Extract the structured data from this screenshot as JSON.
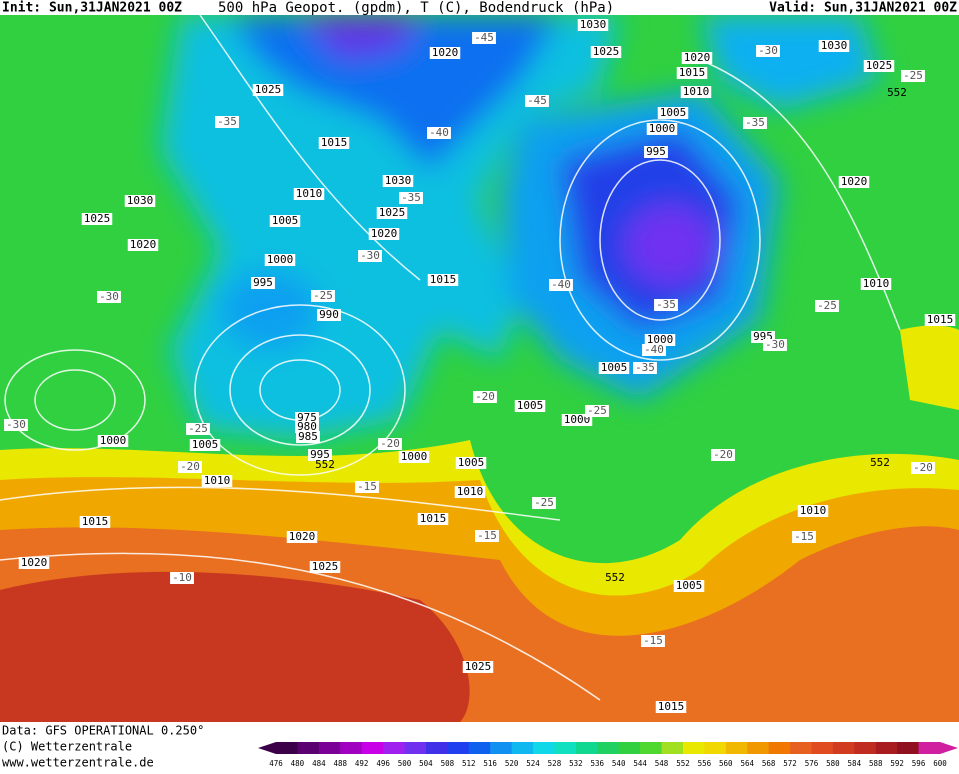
{
  "header": {
    "init": "Init: Sun,31JAN2021 00Z",
    "title": "500 hPa Geopot. (gpdm), T (C), Bodendruck (hPa)",
    "valid": "Valid: Sun,31JAN2021 00Z"
  },
  "footer": {
    "source": "Data: GFS OPERATIONAL 0.250°",
    "copyright": "(C) Wetterzentrale",
    "url": "www.wetterzentrale.de"
  },
  "pressure_labels": [
    1030,
    1020,
    1025,
    1020,
    1015,
    1010,
    1005,
    1000,
    995,
    1030,
    1025,
    1020,
    1010,
    1015,
    995,
    1000,
    1005,
    1025,
    1015,
    1010,
    1005,
    1000,
    995,
    990,
    1030,
    1025,
    1020,
    1030,
    1025,
    1020,
    1015,
    975,
    980,
    985,
    995,
    1000,
    1005,
    1010,
    1000,
    1005,
    1010,
    1015,
    1015,
    1020,
    1025,
    1020,
    1005,
    1000,
    1010,
    1005,
    1025,
    1015
  ],
  "temperature_labels": [
    -45,
    -45,
    -40,
    -35,
    -35,
    -35,
    -30,
    -30,
    -25,
    -40,
    -35,
    -40,
    -35,
    -30,
    -25,
    -30,
    -25,
    -30,
    -25,
    -20,
    -20,
    -20,
    -25,
    -15,
    -25,
    -20,
    -20,
    -15,
    -15,
    -10,
    -15
  ],
  "geopotential_labels": [
    552,
    552,
    552,
    552
  ],
  "colorbar": {
    "labels": [
      476,
      480,
      484,
      488,
      492,
      496,
      500,
      504,
      508,
      512,
      516,
      520,
      524,
      528,
      532,
      536,
      540,
      544,
      548,
      552,
      556,
      560,
      564,
      568,
      572,
      576,
      580,
      584,
      588,
      592,
      596,
      600
    ],
    "colors": [
      "#3c0048",
      "#5a0070",
      "#7a0098",
      "#a000c0",
      "#c800e8",
      "#a020f0",
      "#7030f0",
      "#4030e8",
      "#2040f0",
      "#1060f0",
      "#1090f0",
      "#10b8f0",
      "#10d8e8",
      "#10e0c0",
      "#10d890",
      "#20d060",
      "#30d040",
      "#50d830",
      "#a0e020",
      "#e8e800",
      "#f0d800",
      "#f0b800",
      "#f09800",
      "#f07800",
      "#e86020",
      "#e04c20",
      "#d03c20",
      "#c02c20",
      "#a81c20",
      "#901020",
      "#d020a0"
    ]
  }
}
